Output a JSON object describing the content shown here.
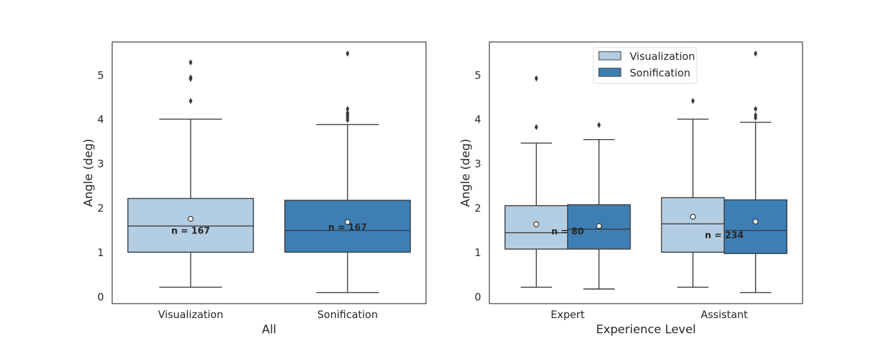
{
  "colors": {
    "visualization": "#b3cde3",
    "sonification": "#3d7fb5",
    "line": "#3a3a3a",
    "frame": "#262626"
  },
  "legend": {
    "position": "upper center",
    "items": [
      {
        "label": "Visualization",
        "color_key": "visualization"
      },
      {
        "label": "Sonification",
        "color_key": "sonification"
      }
    ]
  },
  "chart_data": [
    {
      "type": "boxplot",
      "xlabel": "All",
      "ylabel": "Angle (deg)",
      "ylim": [
        -0.15,
        5.75
      ],
      "yticks": [
        0,
        1,
        2,
        3,
        4,
        5
      ],
      "categories": [
        "Visualization",
        "Sonification"
      ],
      "grid": false,
      "boxes": [
        {
          "category": "Visualization",
          "hue": "visualization",
          "whisker_low": 0.22,
          "q1": 1.01,
          "median": 1.6,
          "q3": 2.22,
          "whisker_high": 4.01,
          "mean": 1.76,
          "outliers": [
            4.42,
            4.92,
            4.95,
            5.29
          ]
        },
        {
          "category": "Sonification",
          "hue": "sonification",
          "whisker_low": 0.1,
          "q1": 1.01,
          "median": 1.5,
          "q3": 2.18,
          "whisker_high": 3.89,
          "mean": 1.69,
          "outliers": [
            3.99,
            4.05,
            4.1,
            4.15,
            4.24,
            5.49
          ]
        }
      ],
      "n_labels": [
        {
          "category": "Visualization",
          "text": "n = 167",
          "y": 1.5
        },
        {
          "category": "Sonification",
          "text": "n = 167",
          "y": 1.58
        }
      ]
    },
    {
      "type": "boxplot",
      "xlabel": "Experience Level",
      "ylabel": "Angle (deg)",
      "ylim": [
        -0.15,
        5.75
      ],
      "yticks": [
        0,
        1,
        2,
        3,
        4,
        5
      ],
      "categories": [
        "Expert",
        "Assistant"
      ],
      "grid": false,
      "hue_order": [
        "visualization",
        "sonification"
      ],
      "boxes": [
        {
          "category": "Expert",
          "hue": "visualization",
          "whisker_low": 0.22,
          "q1": 1.08,
          "median": 1.45,
          "q3": 2.06,
          "whisker_high": 3.47,
          "mean": 1.64,
          "outliers": [
            3.83,
            4.93
          ]
        },
        {
          "category": "Expert",
          "hue": "sonification",
          "whisker_low": 0.18,
          "q1": 1.08,
          "median": 1.53,
          "q3": 2.08,
          "whisker_high": 3.55,
          "mean": 1.6,
          "outliers": [
            3.88
          ]
        },
        {
          "category": "Assistant",
          "hue": "visualization",
          "whisker_low": 0.22,
          "q1": 1.01,
          "median": 1.65,
          "q3": 2.24,
          "whisker_high": 4.01,
          "mean": 1.81,
          "outliers": [
            4.42
          ]
        },
        {
          "category": "Assistant",
          "hue": "sonification",
          "whisker_low": 0.1,
          "q1": 0.98,
          "median": 1.5,
          "q3": 2.19,
          "whisker_high": 3.94,
          "mean": 1.7,
          "outliers": [
            4.04,
            4.1,
            4.24,
            5.49
          ]
        }
      ],
      "n_labels": [
        {
          "category": "Expert",
          "text": "n = 80",
          "y": 1.49
        },
        {
          "category": "Assistant",
          "text": "n = 234",
          "y": 1.4
        }
      ]
    }
  ]
}
